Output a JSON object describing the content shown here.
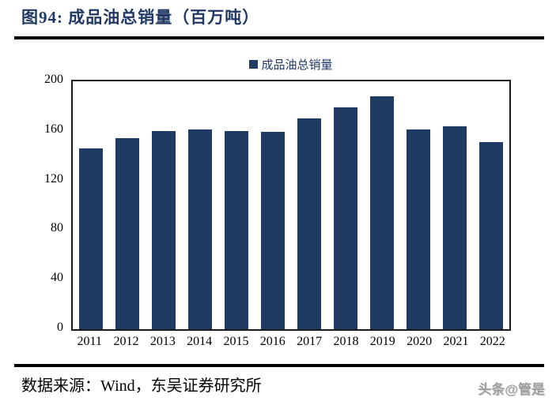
{
  "figure": {
    "title": "图94:  成品油总销量（百万吨）",
    "source_text": "数据来源：Wind，东吴证券研究所",
    "watermark": "头条@管是"
  },
  "chart_data": {
    "type": "bar",
    "title": "成品油总销量（百万吨）",
    "series_name": "成品油总销量",
    "legend": [
      "成品油总销量"
    ],
    "legend_position": "top-center",
    "categories": [
      "2011",
      "2012",
      "2013",
      "2014",
      "2015",
      "2016",
      "2017",
      "2018",
      "2019",
      "2020",
      "2021",
      "2022"
    ],
    "values": [
      146,
      154,
      160,
      161,
      160,
      159,
      170,
      179,
      188,
      161,
      164,
      151
    ],
    "xlabel": "",
    "ylabel": "",
    "ylim": [
      0,
      200
    ],
    "yticks": [
      0,
      40,
      80,
      120,
      160,
      200
    ],
    "grid": false,
    "bar_color": "#1F3B63"
  },
  "colors": {
    "title_navy": "#1F3864",
    "bar_navy": "#1F3B63",
    "rule_black": "#000000",
    "axis_text": "#000000",
    "watermark_gray": "#9E9E9E"
  }
}
